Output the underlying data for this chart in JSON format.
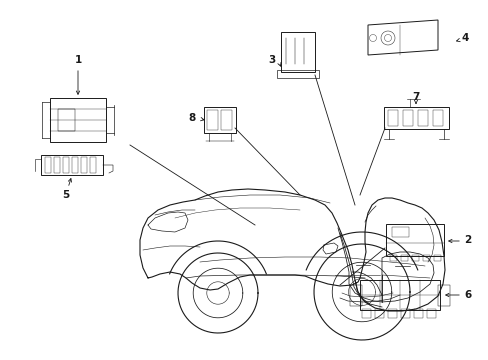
{
  "bg_color": "#ffffff",
  "line_color": "#1a1a1a",
  "figsize": [
    4.89,
    3.6
  ],
  "dpi": 100,
  "label_fs": 7.5,
  "lw_car": 0.8,
  "lw_comp": 0.7,
  "lw_leader": 0.6
}
